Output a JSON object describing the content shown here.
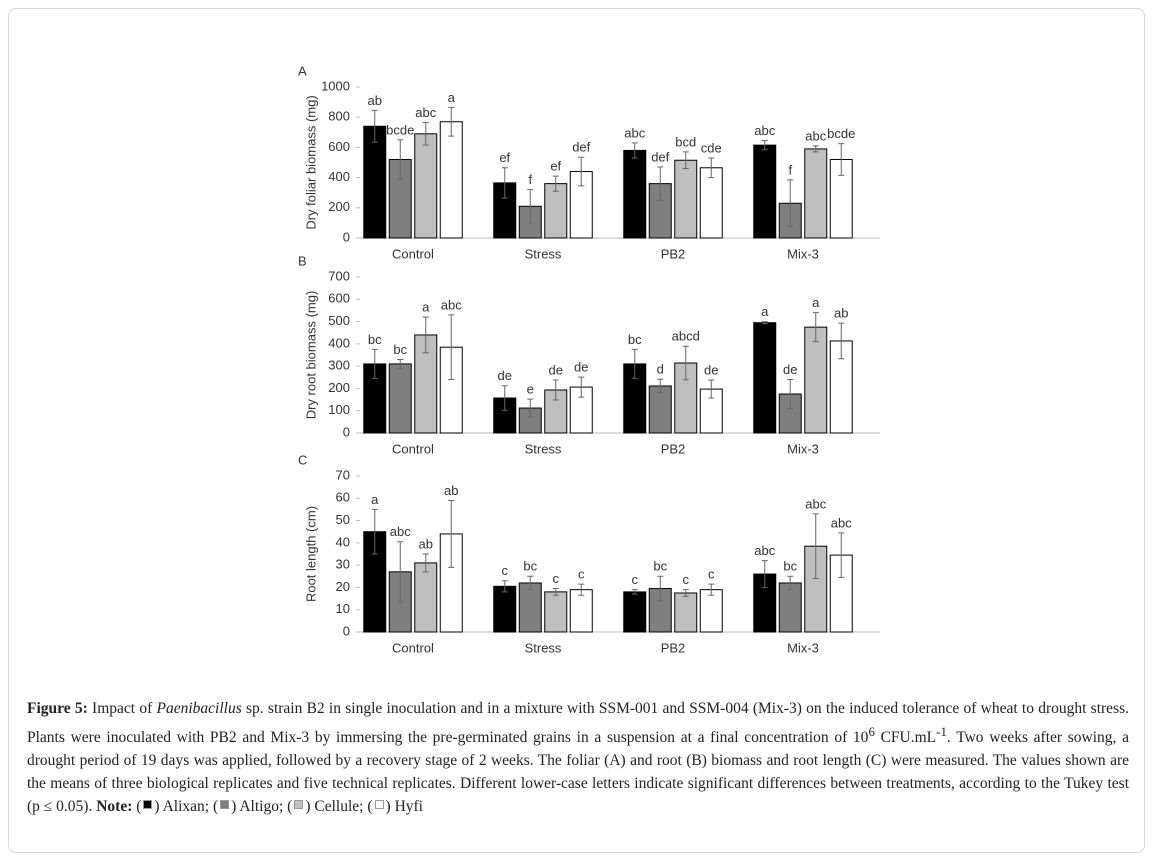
{
  "chart_data": [
    {
      "type": "bar",
      "panel": "A",
      "y_label": "Dry foliar biomass (mg)",
      "categories": [
        "Control",
        "Stress",
        "PB2",
        "Mix-3"
      ],
      "ylim": [
        0,
        1000
      ],
      "yticks": [
        0,
        200,
        400,
        600,
        800,
        1000
      ],
      "series": [
        {
          "name": "Alixan",
          "color": "#000000",
          "values": [
            740,
            365,
            580,
            615
          ],
          "errors": [
            105,
            100,
            50,
            30
          ],
          "letters": [
            "ab",
            "ef",
            "abc",
            "abc"
          ]
        },
        {
          "name": "Altigo",
          "color": "#7f7f7f",
          "values": [
            520,
            210,
            360,
            230
          ],
          "errors": [
            130,
            110,
            110,
            155
          ],
          "letters": [
            "bcde",
            "f",
            "def",
            "f"
          ]
        },
        {
          "name": "Cellule",
          "color": "#bfbfbf",
          "values": [
            690,
            360,
            515,
            590
          ],
          "errors": [
            75,
            50,
            55,
            20
          ],
          "letters": [
            "abc",
            "ef",
            "bcd",
            "abc"
          ]
        },
        {
          "name": "Hyfi",
          "color": "#ffffff",
          "values": [
            770,
            440,
            465,
            520
          ],
          "errors": [
            95,
            95,
            65,
            105
          ],
          "letters": [
            "a",
            "def",
            "cde",
            "bcde"
          ]
        }
      ]
    },
    {
      "type": "bar",
      "panel": "B",
      "y_label": "Dry root biomass (mg)",
      "categories": [
        "Control",
        "Stress",
        "PB2",
        "Mix-3"
      ],
      "ylim": [
        0,
        700
      ],
      "yticks": [
        0,
        100,
        200,
        300,
        400,
        500,
        600,
        700
      ],
      "series": [
        {
          "color": "#000000",
          "values": [
            310,
            157,
            310,
            495
          ],
          "errors": [
            65,
            55,
            65,
            5
          ],
          "letters": [
            "bc",
            "de",
            "bc",
            "a"
          ]
        },
        {
          "color": "#7f7f7f",
          "values": [
            310,
            112,
            211,
            175
          ],
          "errors": [
            20,
            40,
            30,
            65
          ],
          "letters": [
            "bc",
            "e",
            "d",
            "de"
          ]
        },
        {
          "color": "#bfbfbf",
          "values": [
            440,
            193,
            314,
            475
          ],
          "errors": [
            80,
            45,
            75,
            65
          ],
          "letters": [
            "a",
            "de",
            "abcd",
            "a"
          ]
        },
        {
          "color": "#ffffff",
          "values": [
            385,
            206,
            197,
            413
          ],
          "errors": [
            145,
            45,
            40,
            80
          ],
          "letters": [
            "abc",
            "de",
            "de",
            "ab"
          ]
        }
      ]
    },
    {
      "type": "bar",
      "panel": "C",
      "y_label": "Root length (cm)",
      "categories": [
        "Control",
        "Stress",
        "PB2",
        "Mix-3"
      ],
      "ylim": [
        0,
        70
      ],
      "yticks": [
        0,
        10,
        20,
        30,
        40,
        50,
        60,
        70
      ],
      "series": [
        {
          "color": "#000000",
          "values": [
            45,
            20.5,
            18,
            26
          ],
          "errors": [
            10,
            2.5,
            1,
            6
          ],
          "letters": [
            "a",
            "c",
            "c",
            "abc"
          ]
        },
        {
          "color": "#7f7f7f",
          "values": [
            27,
            22,
            19.5,
            22
          ],
          "errors": [
            13.5,
            3,
            5.5,
            3
          ],
          "letters": [
            "abc",
            "bc",
            "bc",
            "bc"
          ]
        },
        {
          "color": "#bfbfbf",
          "values": [
            31,
            18,
            17.5,
            38.5
          ],
          "errors": [
            4,
            1.5,
            1.5,
            14.5
          ],
          "letters": [
            "ab",
            "c",
            "c",
            "abc"
          ]
        },
        {
          "color": "#ffffff",
          "values": [
            44,
            19,
            19,
            34.5
          ],
          "errors": [
            15,
            2.5,
            2.5,
            10
          ],
          "letters": [
            "ab",
            "c",
            "c",
            "abc"
          ]
        }
      ]
    }
  ],
  "caption": {
    "label": "Figure 5:",
    "parts": [
      {
        "text": " Impact of "
      },
      {
        "text": "Paenibacillus",
        "italic": true
      },
      {
        "text": " sp. strain B2 in single inoculation and in a mixture with SSM-001 and SSM-004 (Mix-3) on the induced tolerance of wheat to drought stress. Plants were inoculated with PB2 and Mix-3 by immersing the pre-germinated grains in a suspension at a final concentration of 10"
      },
      {
        "text": "6",
        "sup": true
      },
      {
        "text": " CFU.mL"
      },
      {
        "text": "-1",
        "sup": true
      },
      {
        "text": ". Two weeks after sowing, a drought period of 19 days was applied, followed by a recovery stage of 2 weeks. The foliar (A) and root (B) biomass and root length (C) were measured. The values shown are the means of three biological replicates and five technical replicates. Different lower-case letters indicate significant differences between treatments, according to the Tukey test (p ≤ 0.05). "
      }
    ],
    "note_label": "Note:"
  }
}
